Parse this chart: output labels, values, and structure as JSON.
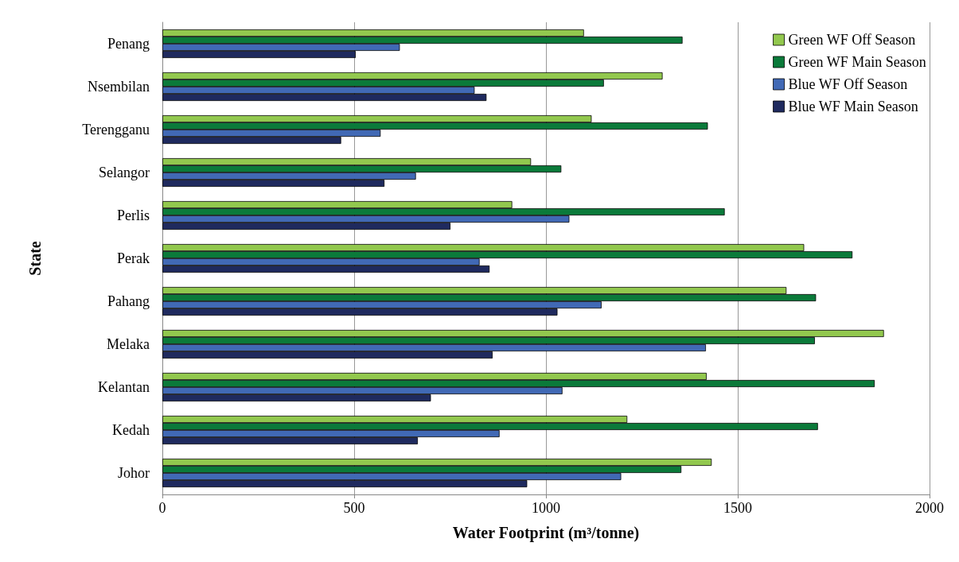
{
  "chart_data": {
    "type": "bar",
    "orientation": "horizontal",
    "xlabel": "Water Footprint (m³/tonne)",
    "ylabel": "State",
    "categories": [
      "Penang",
      "Nsembilan",
      "Terengganu",
      "Selangor",
      "Perlis",
      "Perak",
      "Pahang",
      "Melaka",
      "Kelantan",
      "Kedah",
      "Johor"
    ],
    "series": [
      {
        "name": "Green WF Off Season",
        "color": "#92c84e",
        "values": [
          1099,
          1304,
          1119,
          961,
          912,
          1673,
          1627,
          1881,
          1419,
          1212,
          1432
        ]
      },
      {
        "name": "Green WF Main Season",
        "color": "#0b7a3a",
        "values": [
          1356,
          1151,
          1422,
          1040,
          1466,
          1799,
          1704,
          1701,
          1857,
          1709,
          1353
        ]
      },
      {
        "name": "Blue WF Off Season",
        "color": "#4169b5",
        "values": [
          619,
          814,
          569,
          661,
          1061,
          827,
          1145,
          1417,
          1043,
          879,
          1196
        ]
      },
      {
        "name": "Blue WF Main Season",
        "color": "#1f2a5e",
        "values": [
          504,
          845,
          466,
          579,
          751,
          853,
          1030,
          861,
          700,
          666,
          951
        ]
      }
    ],
    "xlim": [
      0,
      2000
    ],
    "xticks": [
      0,
      500,
      1000,
      1500,
      2000
    ],
    "grid": "x",
    "legend": "top right"
  }
}
